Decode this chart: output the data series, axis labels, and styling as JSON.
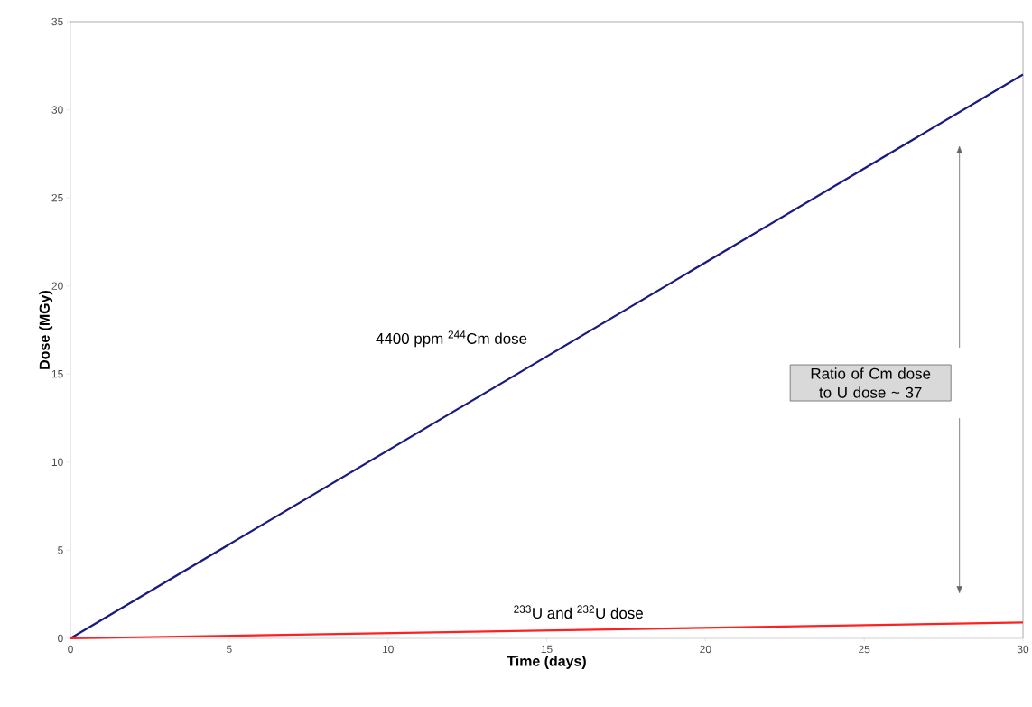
{
  "chart_data": {
    "type": "line",
    "xlabel": "Time (days)",
    "ylabel": "Dose (MGy)",
    "x": [
      0,
      30
    ],
    "series": [
      {
        "color": "#1a1a80",
        "values": [
          0,
          32
        ]
      },
      {
        "color": "#ff2020",
        "values": [
          0,
          0.9
        ]
      }
    ],
    "xlim": [
      0,
      30
    ],
    "ylim": [
      0,
      35
    ],
    "xticks": [
      0,
      5,
      10,
      15,
      20,
      25,
      30
    ],
    "yticks": [
      0,
      5,
      10,
      15,
      20,
      25,
      30,
      35
    ],
    "grid": false,
    "marker": "none",
    "line_style": "solid",
    "annotations": [
      "4400 ppm $^{244}$Cm dose",
      "$^{233}$U and $^{232}$U dose",
      "Ratio of Cm dose to U dose ~ 37"
    ]
  }
}
